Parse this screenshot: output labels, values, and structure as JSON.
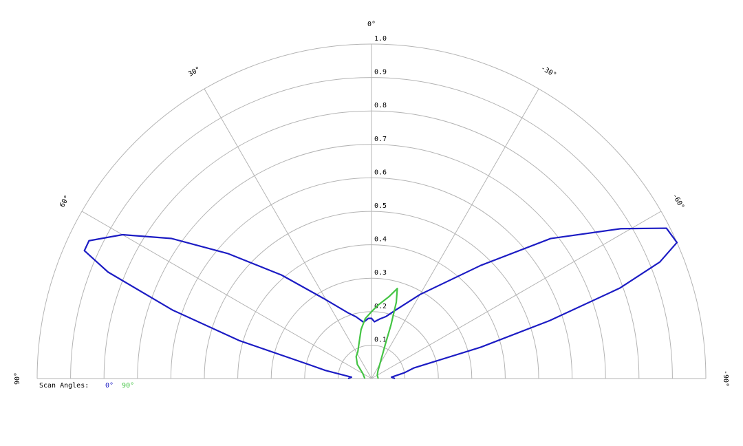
{
  "chart_data": {
    "type": "polar",
    "rlim": [
      0,
      1
    ],
    "rticks": [
      0.1,
      0.2,
      0.3,
      0.4,
      0.5,
      0.6,
      0.7,
      0.8,
      0.9,
      {
        "value": 1,
        "label": "1.0"
      }
    ],
    "thetalim": [
      90,
      -90
    ],
    "thetaticks": [
      {
        "value": 0,
        "label": "0°"
      },
      {
        "value": 30,
        "label": "30°"
      },
      {
        "value": -30,
        "label": "-30°"
      },
      {
        "value": 60,
        "label": "60°"
      },
      {
        "value": -60,
        "label": "-60°"
      },
      {
        "value": 90,
        "label": "90°"
      },
      {
        "value": -90,
        "label": "-90°"
      }
    ],
    "legend_title": "Scan Angles:",
    "series": [
      {
        "name": "0°",
        "color": "#1c1cc4",
        "theta": [
          90,
          86,
          80,
          77.5,
          74,
          71,
          68,
          66,
          64,
          60,
          55,
          49,
          41,
          31,
          20,
          14,
          8,
          3,
          0,
          -3,
          -8,
          -13,
          -20,
          -30,
          -44,
          -52,
          -59,
          -63,
          -66,
          -68,
          -70,
          -72,
          -74,
          -76,
          -80,
          -86,
          -90
        ],
        "values": [
          0.07,
          0.06,
          0.14,
          0.19,
          0.41,
          0.63,
          0.85,
          0.94,
          0.94,
          0.86,
          0.73,
          0.57,
          0.41,
          0.28,
          0.21,
          0.19,
          0.17,
          0.18,
          0.18,
          0.17,
          0.18,
          0.19,
          0.22,
          0.29,
          0.47,
          0.68,
          0.87,
          0.99,
          1.0,
          0.93,
          0.79,
          0.56,
          0.34,
          0.13,
          0.1,
          0.06,
          0.07
        ]
      },
      {
        "name": "90°",
        "color": "#44c444",
        "theta": [
          90,
          60,
          45,
          35,
          27,
          20,
          12,
          6,
          0,
          -5,
          -12,
          -16,
          -18,
          -20,
          -22,
          -30,
          -40,
          -60,
          -90
        ],
        "values": [
          0.02,
          0.03,
          0.06,
          0.08,
          0.09,
          0.11,
          0.15,
          0.18,
          0.2,
          0.22,
          0.25,
          0.28,
          0.24,
          0.17,
          0.11,
          0.05,
          0.03,
          0.02,
          0.02
        ]
      }
    ]
  }
}
